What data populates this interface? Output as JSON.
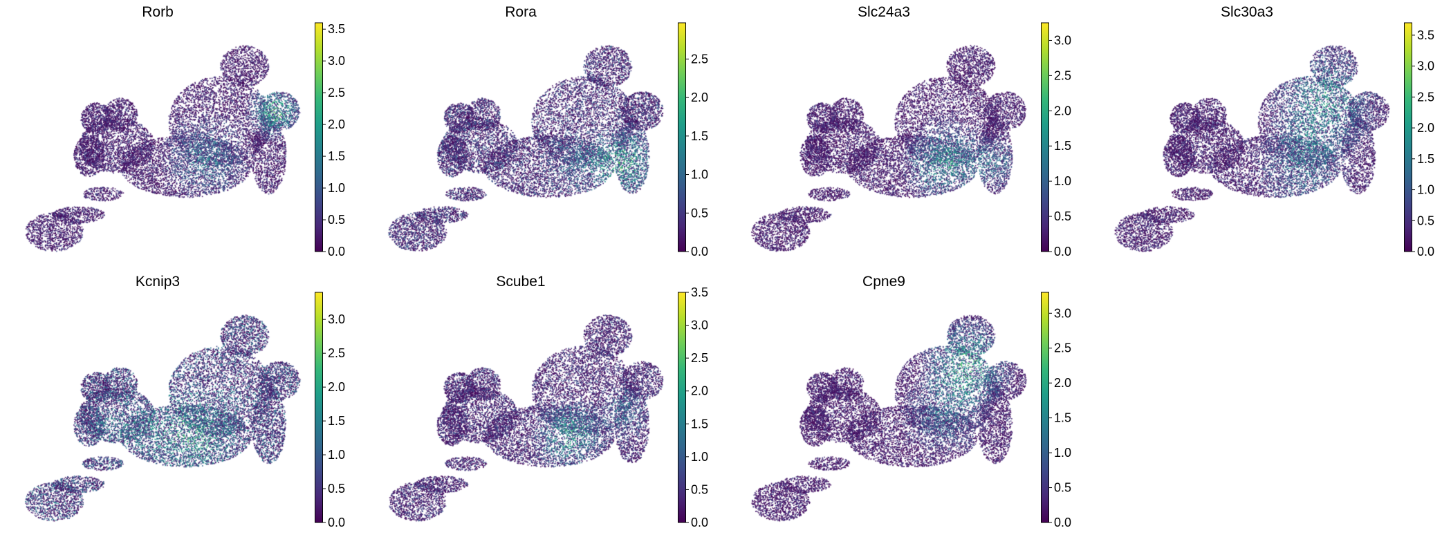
{
  "figure": {
    "type": "umap_feature_plots",
    "colormap": "viridis",
    "viridis_stops": [
      "#440154",
      "#482878",
      "#3e4989",
      "#31688e",
      "#26828e",
      "#1f9e89",
      "#35b779",
      "#6ece58",
      "#b5de2b",
      "#fde725"
    ]
  },
  "chart_data": [
    {
      "type": "scatter",
      "title": "Rorb",
      "vmax": 3.6,
      "ticks": [
        "0.0",
        "0.5",
        "1.0",
        "1.5",
        "2.0",
        "2.5",
        "3.0",
        "3.5"
      ],
      "tick_values": [
        0,
        0.5,
        1,
        1.5,
        2,
        2.5,
        3,
        3.5
      ],
      "hotspot": "right-cap",
      "base_level": 0.6
    },
    {
      "type": "scatter",
      "title": "Rora",
      "vmax": 2.97,
      "ticks": [
        "0.0",
        "0.5",
        "1.0",
        "1.5",
        "2.0",
        "2.5"
      ],
      "tick_values": [
        0,
        0.5,
        1,
        1.5,
        2,
        2.5
      ],
      "hotspot": "right-lower",
      "base_level": 0.7
    },
    {
      "type": "scatter",
      "title": "Slc24a3",
      "vmax": 3.25,
      "ticks": [
        "0.0",
        "0.5",
        "1.0",
        "1.5",
        "2.0",
        "2.5",
        "3.0"
      ],
      "tick_values": [
        0,
        0.5,
        1,
        1.5,
        2,
        2.5,
        3
      ],
      "hotspot": "center-right",
      "base_level": 0.5
    },
    {
      "type": "scatter",
      "title": "Slc30a3",
      "vmax": 3.7,
      "ticks": [
        "0.0",
        "0.5",
        "1.0",
        "1.5",
        "2.0",
        "2.5",
        "3.0",
        "3.5"
      ],
      "tick_values": [
        0,
        0.5,
        1,
        1.5,
        2,
        2.5,
        3,
        3.5
      ],
      "hotspot": "upper-right-broad",
      "base_level": 0.6
    },
    {
      "type": "scatter",
      "title": "Kcnip3",
      "vmax": 3.4,
      "ticks": [
        "0.0",
        "0.5",
        "1.0",
        "1.5",
        "2.0",
        "2.5",
        "3.0"
      ],
      "tick_values": [
        0,
        0.5,
        1,
        1.5,
        2,
        2.5,
        3
      ],
      "hotspot": "middle-broad",
      "base_level": 1.1
    },
    {
      "type": "scatter",
      "title": "Scube1",
      "vmax": 3.5,
      "ticks": [
        "0.0",
        "0.5",
        "1.0",
        "1.5",
        "2.0",
        "2.5",
        "3.0",
        "3.5"
      ],
      "tick_values": [
        0,
        0.5,
        1,
        1.5,
        2,
        2.5,
        3,
        3.5
      ],
      "hotspot": "center",
      "base_level": 0.7
    },
    {
      "type": "scatter",
      "title": "Cpne9",
      "vmax": 3.3,
      "ticks": [
        "0.0",
        "0.5",
        "1.0",
        "1.5",
        "2.0",
        "2.5",
        "3.0"
      ],
      "tick_values": [
        0,
        0.5,
        1,
        1.5,
        2,
        2.5,
        3
      ],
      "hotspot": "upper-right",
      "base_level": 0.5
    }
  ]
}
